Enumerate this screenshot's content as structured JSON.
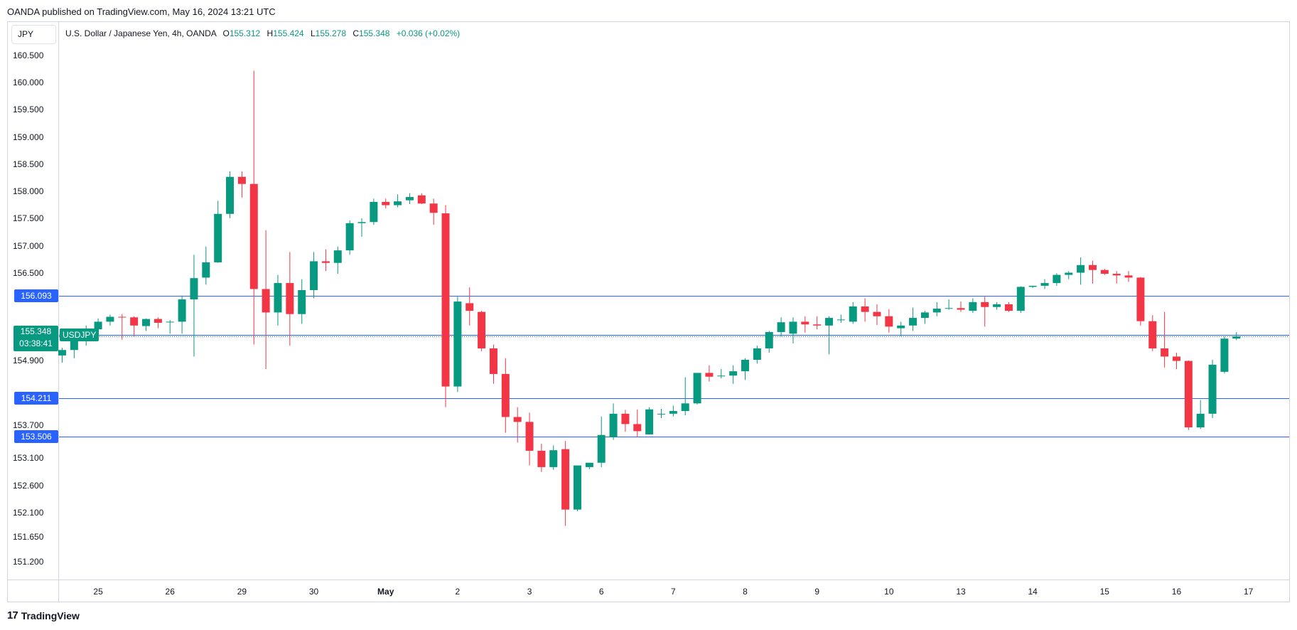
{
  "header": {
    "published": "OANDA published on TradingView.com, May 16, 2024 13:21 UTC"
  },
  "currency_box": "JPY",
  "legend": {
    "symbol": "U.S. Dollar / Japanese Yen, 4h, OANDA",
    "o_label": "O",
    "o": "155.312",
    "h_label": "H",
    "h": "155.424",
    "l_label": "L",
    "l": "155.278",
    "c_label": "C",
    "c": "155.348",
    "change": "+0.036 (+0.02%)"
  },
  "current_price": {
    "value": "155.348",
    "countdown": "03:38:41",
    "symbol": "USDJPY"
  },
  "brand": {
    "name": "TradingView"
  },
  "colors": {
    "up": "#089981",
    "down": "#f23645",
    "level": "#2962ff"
  },
  "chart_data": {
    "type": "candlestick",
    "interval": "4h",
    "yticks": [
      "160.500",
      "160.000",
      "159.500",
      "159.000",
      "158.500",
      "158.000",
      "157.500",
      "157.000",
      "156.500",
      "154.900",
      "153.700",
      "153.100",
      "152.600",
      "152.100",
      "151.650",
      "151.200"
    ],
    "xticks": [
      "25",
      "26",
      "29",
      "30",
      "May",
      "2",
      "3",
      "6",
      "7",
      "8",
      "9",
      "10",
      "13",
      "14",
      "15",
      "16",
      "17"
    ],
    "horizontal_levels": [
      156.093,
      155.379,
      154.211,
      153.506
    ],
    "current_price": 155.348,
    "candles": [
      [
        155.0,
        155.14,
        154.87,
        155.1
      ],
      [
        155.1,
        155.3,
        154.95,
        155.27
      ],
      [
        155.27,
        155.55,
        155.18,
        155.48
      ],
      [
        155.48,
        155.68,
        155.4,
        155.62
      ],
      [
        155.62,
        155.75,
        155.55,
        155.71
      ],
      [
        155.71,
        155.76,
        155.29,
        155.7
      ],
      [
        155.7,
        155.72,
        155.35,
        155.55
      ],
      [
        155.54,
        155.68,
        155.45,
        155.67
      ],
      [
        155.67,
        155.7,
        155.5,
        155.6
      ],
      [
        155.62,
        155.65,
        155.4,
        155.62
      ],
      [
        155.62,
        156.1,
        155.4,
        156.03
      ],
      [
        156.03,
        156.85,
        154.98,
        156.42
      ],
      [
        156.43,
        157.0,
        156.3,
        156.71
      ],
      [
        156.71,
        157.84,
        156.7,
        157.6
      ],
      [
        157.6,
        158.38,
        157.52,
        158.28
      ],
      [
        158.28,
        158.38,
        157.9,
        158.15
      ],
      [
        158.15,
        160.23,
        155.2,
        156.22
      ],
      [
        156.22,
        157.3,
        154.75,
        155.79
      ],
      [
        155.79,
        156.48,
        155.55,
        156.33
      ],
      [
        156.33,
        156.9,
        155.18,
        155.76
      ],
      [
        155.76,
        156.4,
        155.58,
        156.2
      ],
      [
        156.2,
        156.9,
        156.05,
        156.73
      ],
      [
        156.73,
        156.95,
        156.55,
        156.7
      ],
      [
        156.7,
        157.0,
        156.5,
        156.93
      ],
      [
        156.93,
        157.48,
        156.85,
        157.43
      ],
      [
        157.43,
        157.52,
        157.18,
        157.45
      ],
      [
        157.45,
        157.88,
        157.4,
        157.82
      ],
      [
        157.82,
        157.88,
        157.7,
        157.76
      ],
      [
        157.76,
        157.96,
        157.72,
        157.83
      ],
      [
        157.85,
        157.98,
        157.78,
        157.91
      ],
      [
        157.94,
        157.98,
        157.78,
        157.79
      ],
      [
        157.79,
        157.88,
        157.4,
        157.62
      ],
      [
        157.61,
        157.76,
        154.05,
        154.43
      ],
      [
        154.43,
        156.08,
        154.33,
        155.99
      ],
      [
        155.96,
        156.25,
        155.55,
        155.82
      ],
      [
        155.8,
        155.82,
        155.08,
        155.13
      ],
      [
        155.13,
        155.2,
        154.48,
        154.66
      ],
      [
        154.66,
        154.95,
        153.58,
        153.87
      ],
      [
        153.87,
        154.05,
        153.4,
        153.78
      ],
      [
        153.78,
        153.95,
        152.98,
        153.25
      ],
      [
        153.25,
        153.38,
        152.86,
        152.95
      ],
      [
        152.95,
        153.35,
        152.9,
        153.26
      ],
      [
        153.28,
        153.43,
        151.87,
        152.17
      ],
      [
        152.17,
        152.98,
        152.14,
        152.98
      ],
      [
        152.95,
        153.03,
        152.91,
        153.03
      ],
      [
        153.03,
        153.88,
        152.95,
        153.54
      ],
      [
        153.5,
        154.12,
        153.45,
        153.93
      ],
      [
        153.93,
        154.0,
        153.6,
        153.74
      ],
      [
        153.74,
        154.01,
        153.5,
        153.61
      ],
      [
        153.55,
        154.05,
        153.55,
        154.01
      ],
      [
        153.92,
        154.02,
        153.85,
        153.93
      ],
      [
        153.93,
        154.08,
        153.88,
        153.98
      ],
      [
        153.98,
        154.6,
        153.9,
        154.12
      ],
      [
        154.12,
        154.65,
        154.1,
        154.68
      ],
      [
        154.68,
        154.82,
        154.52,
        154.61
      ],
      [
        154.62,
        154.75,
        154.58,
        154.63
      ],
      [
        154.63,
        154.82,
        154.48,
        154.71
      ],
      [
        154.71,
        154.95,
        154.55,
        154.92
      ],
      [
        154.92,
        155.18,
        154.85,
        155.13
      ],
      [
        155.13,
        155.45,
        155.05,
        155.43
      ],
      [
        155.43,
        155.7,
        155.35,
        155.61
      ],
      [
        155.4,
        155.7,
        155.22,
        155.62
      ],
      [
        155.62,
        155.72,
        155.42,
        155.57
      ],
      [
        155.57,
        155.72,
        155.48,
        155.55
      ],
      [
        155.55,
        155.72,
        155.02,
        155.69
      ],
      [
        155.65,
        155.75,
        155.6,
        155.66
      ],
      [
        155.62,
        155.98,
        155.58,
        155.9
      ],
      [
        155.9,
        156.05,
        155.62,
        155.8
      ],
      [
        155.8,
        155.94,
        155.56,
        155.72
      ],
      [
        155.72,
        155.85,
        155.42,
        155.53
      ],
      [
        155.5,
        155.62,
        155.35,
        155.55
      ],
      [
        155.55,
        155.88,
        155.45,
        155.69
      ],
      [
        155.69,
        155.82,
        155.58,
        155.79
      ],
      [
        155.79,
        155.98,
        155.72,
        155.86
      ],
      [
        155.86,
        156.03,
        155.84,
        155.87
      ],
      [
        155.87,
        155.99,
        155.8,
        155.84
      ],
      [
        155.82,
        156.05,
        155.78,
        155.98
      ],
      [
        155.98,
        156.08,
        155.53,
        155.89
      ],
      [
        155.89,
        155.98,
        155.84,
        155.94
      ],
      [
        155.94,
        155.98,
        155.8,
        155.82
      ],
      [
        155.82,
        156.27,
        155.78,
        156.26
      ],
      [
        156.26,
        156.28,
        156.24,
        156.28
      ],
      [
        156.28,
        156.4,
        156.22,
        156.33
      ],
      [
        156.33,
        156.51,
        156.28,
        156.48
      ],
      [
        156.48,
        156.55,
        156.4,
        156.52
      ],
      [
        156.52,
        156.8,
        156.3,
        156.66
      ],
      [
        156.66,
        156.74,
        156.32,
        156.57
      ],
      [
        156.57,
        156.59,
        156.48,
        156.5
      ],
      [
        156.5,
        156.55,
        156.32,
        156.47
      ],
      [
        156.47,
        156.55,
        156.35,
        156.43
      ],
      [
        156.43,
        156.44,
        155.55,
        155.63
      ],
      [
        155.63,
        155.74,
        155.08,
        155.13
      ],
      [
        155.13,
        155.8,
        154.78,
        154.98
      ],
      [
        154.98,
        155.05,
        154.75,
        154.9
      ],
      [
        154.9,
        154.91,
        153.63,
        153.68
      ],
      [
        153.68,
        154.18,
        153.65,
        153.93
      ],
      [
        153.93,
        154.92,
        153.85,
        154.83
      ],
      [
        154.7,
        155.35,
        154.67,
        155.31
      ],
      [
        155.31,
        155.43,
        155.28,
        155.35
      ]
    ]
  }
}
